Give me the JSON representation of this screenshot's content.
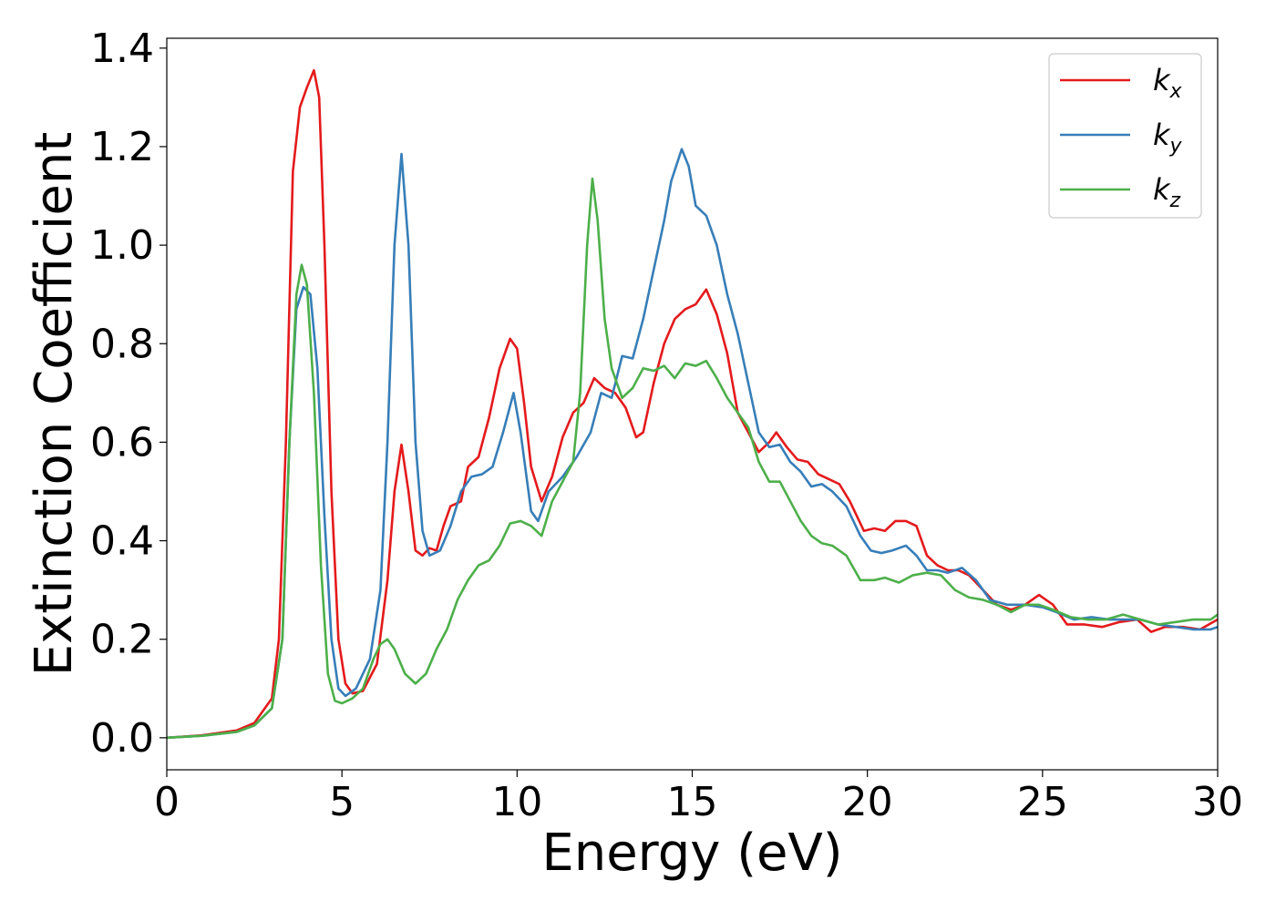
{
  "chart_data": {
    "type": "line",
    "xlabel": "Energy (eV)",
    "ylabel": "Extinction Coefficient",
    "xlim": [
      0,
      30
    ],
    "ylim": [
      -0.065,
      1.42
    ],
    "xticks": [
      0,
      5,
      10,
      15,
      20,
      25,
      30
    ],
    "yticks": [
      0.0,
      0.2,
      0.4,
      0.6,
      0.8,
      1.0,
      1.2,
      1.4
    ],
    "grid": false,
    "legend_position": "top-right",
    "series": [
      {
        "name": "k",
        "subscript": "x",
        "color": "#e41a1c",
        "points": [
          [
            0,
            0
          ],
          [
            1,
            0.005
          ],
          [
            2,
            0.015
          ],
          [
            2.5,
            0.03
          ],
          [
            3.0,
            0.08
          ],
          [
            3.2,
            0.2
          ],
          [
            3.4,
            0.6
          ],
          [
            3.6,
            1.15
          ],
          [
            3.8,
            1.28
          ],
          [
            4.0,
            1.32
          ],
          [
            4.2,
            1.355
          ],
          [
            4.35,
            1.3
          ],
          [
            4.5,
            1.0
          ],
          [
            4.7,
            0.5
          ],
          [
            4.9,
            0.2
          ],
          [
            5.1,
            0.11
          ],
          [
            5.3,
            0.09
          ],
          [
            5.6,
            0.095
          ],
          [
            6.0,
            0.15
          ],
          [
            6.3,
            0.32
          ],
          [
            6.5,
            0.5
          ],
          [
            6.7,
            0.595
          ],
          [
            6.9,
            0.5
          ],
          [
            7.1,
            0.38
          ],
          [
            7.3,
            0.37
          ],
          [
            7.5,
            0.385
          ],
          [
            7.7,
            0.38
          ],
          [
            7.9,
            0.43
          ],
          [
            8.1,
            0.47
          ],
          [
            8.4,
            0.48
          ],
          [
            8.6,
            0.55
          ],
          [
            8.9,
            0.57
          ],
          [
            9.2,
            0.65
          ],
          [
            9.5,
            0.75
          ],
          [
            9.8,
            0.81
          ],
          [
            10.0,
            0.79
          ],
          [
            10.2,
            0.68
          ],
          [
            10.4,
            0.55
          ],
          [
            10.7,
            0.48
          ],
          [
            11.0,
            0.53
          ],
          [
            11.3,
            0.61
          ],
          [
            11.6,
            0.66
          ],
          [
            11.9,
            0.68
          ],
          [
            12.2,
            0.73
          ],
          [
            12.5,
            0.71
          ],
          [
            12.8,
            0.7
          ],
          [
            13.1,
            0.67
          ],
          [
            13.4,
            0.61
          ],
          [
            13.6,
            0.62
          ],
          [
            13.9,
            0.72
          ],
          [
            14.2,
            0.8
          ],
          [
            14.5,
            0.85
          ],
          [
            14.8,
            0.87
          ],
          [
            15.1,
            0.88
          ],
          [
            15.4,
            0.91
          ],
          [
            15.7,
            0.86
          ],
          [
            16.0,
            0.78
          ],
          [
            16.3,
            0.66
          ],
          [
            16.6,
            0.62
          ],
          [
            16.9,
            0.58
          ],
          [
            17.2,
            0.6
          ],
          [
            17.4,
            0.62
          ],
          [
            17.7,
            0.59
          ],
          [
            18.0,
            0.565
          ],
          [
            18.3,
            0.56
          ],
          [
            18.6,
            0.535
          ],
          [
            18.9,
            0.525
          ],
          [
            19.2,
            0.515
          ],
          [
            19.5,
            0.48
          ],
          [
            19.9,
            0.42
          ],
          [
            20.2,
            0.425
          ],
          [
            20.5,
            0.42
          ],
          [
            20.8,
            0.44
          ],
          [
            21.1,
            0.44
          ],
          [
            21.4,
            0.43
          ],
          [
            21.7,
            0.37
          ],
          [
            22.0,
            0.35
          ],
          [
            22.3,
            0.34
          ],
          [
            22.6,
            0.34
          ],
          [
            22.9,
            0.33
          ],
          [
            23.3,
            0.3
          ],
          [
            23.7,
            0.27
          ],
          [
            24.1,
            0.26
          ],
          [
            24.5,
            0.27
          ],
          [
            24.9,
            0.29
          ],
          [
            25.3,
            0.27
          ],
          [
            25.7,
            0.23
          ],
          [
            26.2,
            0.23
          ],
          [
            26.7,
            0.225
          ],
          [
            27.2,
            0.235
          ],
          [
            27.7,
            0.24
          ],
          [
            28.1,
            0.215
          ],
          [
            28.5,
            0.225
          ],
          [
            29.0,
            0.225
          ],
          [
            29.5,
            0.22
          ],
          [
            30,
            0.24
          ]
        ]
      },
      {
        "name": "k",
        "subscript": "y",
        "color": "#377eb8",
        "points": [
          [
            0,
            0
          ],
          [
            1,
            0.004
          ],
          [
            2,
            0.012
          ],
          [
            2.5,
            0.025
          ],
          [
            3.0,
            0.06
          ],
          [
            3.3,
            0.2
          ],
          [
            3.5,
            0.6
          ],
          [
            3.7,
            0.87
          ],
          [
            3.9,
            0.915
          ],
          [
            4.1,
            0.9
          ],
          [
            4.3,
            0.75
          ],
          [
            4.5,
            0.45
          ],
          [
            4.7,
            0.2
          ],
          [
            4.9,
            0.1
          ],
          [
            5.1,
            0.085
          ],
          [
            5.4,
            0.1
          ],
          [
            5.8,
            0.16
          ],
          [
            6.1,
            0.3
          ],
          [
            6.3,
            0.6
          ],
          [
            6.5,
            1.0
          ],
          [
            6.7,
            1.185
          ],
          [
            6.9,
            1.0
          ],
          [
            7.1,
            0.6
          ],
          [
            7.3,
            0.42
          ],
          [
            7.5,
            0.37
          ],
          [
            7.8,
            0.38
          ],
          [
            8.1,
            0.43
          ],
          [
            8.4,
            0.5
          ],
          [
            8.7,
            0.53
          ],
          [
            9.0,
            0.535
          ],
          [
            9.3,
            0.55
          ],
          [
            9.6,
            0.62
          ],
          [
            9.9,
            0.7
          ],
          [
            10.1,
            0.62
          ],
          [
            10.4,
            0.46
          ],
          [
            10.6,
            0.44
          ],
          [
            10.9,
            0.5
          ],
          [
            11.3,
            0.53
          ],
          [
            11.7,
            0.57
          ],
          [
            12.1,
            0.62
          ],
          [
            12.4,
            0.7
          ],
          [
            12.7,
            0.69
          ],
          [
            13.0,
            0.775
          ],
          [
            13.3,
            0.77
          ],
          [
            13.6,
            0.85
          ],
          [
            13.9,
            0.95
          ],
          [
            14.2,
            1.05
          ],
          [
            14.4,
            1.13
          ],
          [
            14.7,
            1.195
          ],
          [
            14.9,
            1.16
          ],
          [
            15.1,
            1.08
          ],
          [
            15.4,
            1.06
          ],
          [
            15.7,
            1.0
          ],
          [
            16.0,
            0.9
          ],
          [
            16.3,
            0.82
          ],
          [
            16.6,
            0.72
          ],
          [
            16.9,
            0.62
          ],
          [
            17.2,
            0.59
          ],
          [
            17.5,
            0.595
          ],
          [
            17.8,
            0.56
          ],
          [
            18.1,
            0.54
          ],
          [
            18.4,
            0.51
          ],
          [
            18.7,
            0.515
          ],
          [
            19.0,
            0.5
          ],
          [
            19.4,
            0.47
          ],
          [
            19.8,
            0.41
          ],
          [
            20.1,
            0.38
          ],
          [
            20.4,
            0.375
          ],
          [
            20.7,
            0.38
          ],
          [
            21.1,
            0.39
          ],
          [
            21.4,
            0.37
          ],
          [
            21.7,
            0.34
          ],
          [
            22.0,
            0.34
          ],
          [
            22.3,
            0.335
          ],
          [
            22.7,
            0.345
          ],
          [
            23.1,
            0.32
          ],
          [
            23.5,
            0.28
          ],
          [
            24.0,
            0.27
          ],
          [
            24.5,
            0.27
          ],
          [
            25.0,
            0.265
          ],
          [
            25.4,
            0.255
          ],
          [
            25.9,
            0.24
          ],
          [
            26.4,
            0.245
          ],
          [
            26.9,
            0.24
          ],
          [
            27.3,
            0.24
          ],
          [
            27.8,
            0.24
          ],
          [
            28.3,
            0.23
          ],
          [
            28.8,
            0.225
          ],
          [
            29.3,
            0.22
          ],
          [
            29.8,
            0.22
          ],
          [
            30,
            0.225
          ]
        ]
      },
      {
        "name": "k",
        "subscript": "z",
        "color": "#4daf4a",
        "points": [
          [
            0,
            0
          ],
          [
            1,
            0.004
          ],
          [
            2,
            0.012
          ],
          [
            2.5,
            0.025
          ],
          [
            3.0,
            0.06
          ],
          [
            3.3,
            0.2
          ],
          [
            3.5,
            0.6
          ],
          [
            3.7,
            0.9
          ],
          [
            3.85,
            0.96
          ],
          [
            4.0,
            0.92
          ],
          [
            4.2,
            0.7
          ],
          [
            4.4,
            0.35
          ],
          [
            4.6,
            0.13
          ],
          [
            4.8,
            0.075
          ],
          [
            5.0,
            0.07
          ],
          [
            5.3,
            0.08
          ],
          [
            5.6,
            0.1
          ],
          [
            5.9,
            0.16
          ],
          [
            6.1,
            0.19
          ],
          [
            6.3,
            0.2
          ],
          [
            6.5,
            0.18
          ],
          [
            6.8,
            0.13
          ],
          [
            7.1,
            0.11
          ],
          [
            7.4,
            0.13
          ],
          [
            7.7,
            0.18
          ],
          [
            8.0,
            0.22
          ],
          [
            8.3,
            0.28
          ],
          [
            8.6,
            0.32
          ],
          [
            8.9,
            0.35
          ],
          [
            9.2,
            0.36
          ],
          [
            9.5,
            0.39
          ],
          [
            9.8,
            0.435
          ],
          [
            10.1,
            0.44
          ],
          [
            10.4,
            0.43
          ],
          [
            10.7,
            0.41
          ],
          [
            11.0,
            0.48
          ],
          [
            11.3,
            0.52
          ],
          [
            11.6,
            0.56
          ],
          [
            11.8,
            0.7
          ],
          [
            12.0,
            1.0
          ],
          [
            12.15,
            1.135
          ],
          [
            12.3,
            1.05
          ],
          [
            12.5,
            0.85
          ],
          [
            12.7,
            0.75
          ],
          [
            13.0,
            0.69
          ],
          [
            13.3,
            0.71
          ],
          [
            13.6,
            0.75
          ],
          [
            13.9,
            0.745
          ],
          [
            14.2,
            0.755
          ],
          [
            14.5,
            0.73
          ],
          [
            14.8,
            0.76
          ],
          [
            15.1,
            0.755
          ],
          [
            15.4,
            0.765
          ],
          [
            15.7,
            0.73
          ],
          [
            16.0,
            0.69
          ],
          [
            16.3,
            0.66
          ],
          [
            16.6,
            0.63
          ],
          [
            16.9,
            0.56
          ],
          [
            17.2,
            0.52
          ],
          [
            17.5,
            0.52
          ],
          [
            17.8,
            0.48
          ],
          [
            18.1,
            0.44
          ],
          [
            18.4,
            0.41
          ],
          [
            18.7,
            0.395
          ],
          [
            19.0,
            0.39
          ],
          [
            19.4,
            0.37
          ],
          [
            19.8,
            0.32
          ],
          [
            20.2,
            0.32
          ],
          [
            20.5,
            0.325
          ],
          [
            20.9,
            0.315
          ],
          [
            21.3,
            0.33
          ],
          [
            21.7,
            0.335
          ],
          [
            22.1,
            0.33
          ],
          [
            22.5,
            0.3
          ],
          [
            22.9,
            0.285
          ],
          [
            23.3,
            0.28
          ],
          [
            23.7,
            0.27
          ],
          [
            24.1,
            0.255
          ],
          [
            24.5,
            0.27
          ],
          [
            24.9,
            0.27
          ],
          [
            25.3,
            0.26
          ],
          [
            25.8,
            0.245
          ],
          [
            26.3,
            0.24
          ],
          [
            26.8,
            0.24
          ],
          [
            27.3,
            0.25
          ],
          [
            27.8,
            0.24
          ],
          [
            28.3,
            0.23
          ],
          [
            28.8,
            0.235
          ],
          [
            29.3,
            0.24
          ],
          [
            29.8,
            0.24
          ],
          [
            30,
            0.25
          ]
        ]
      }
    ]
  }
}
